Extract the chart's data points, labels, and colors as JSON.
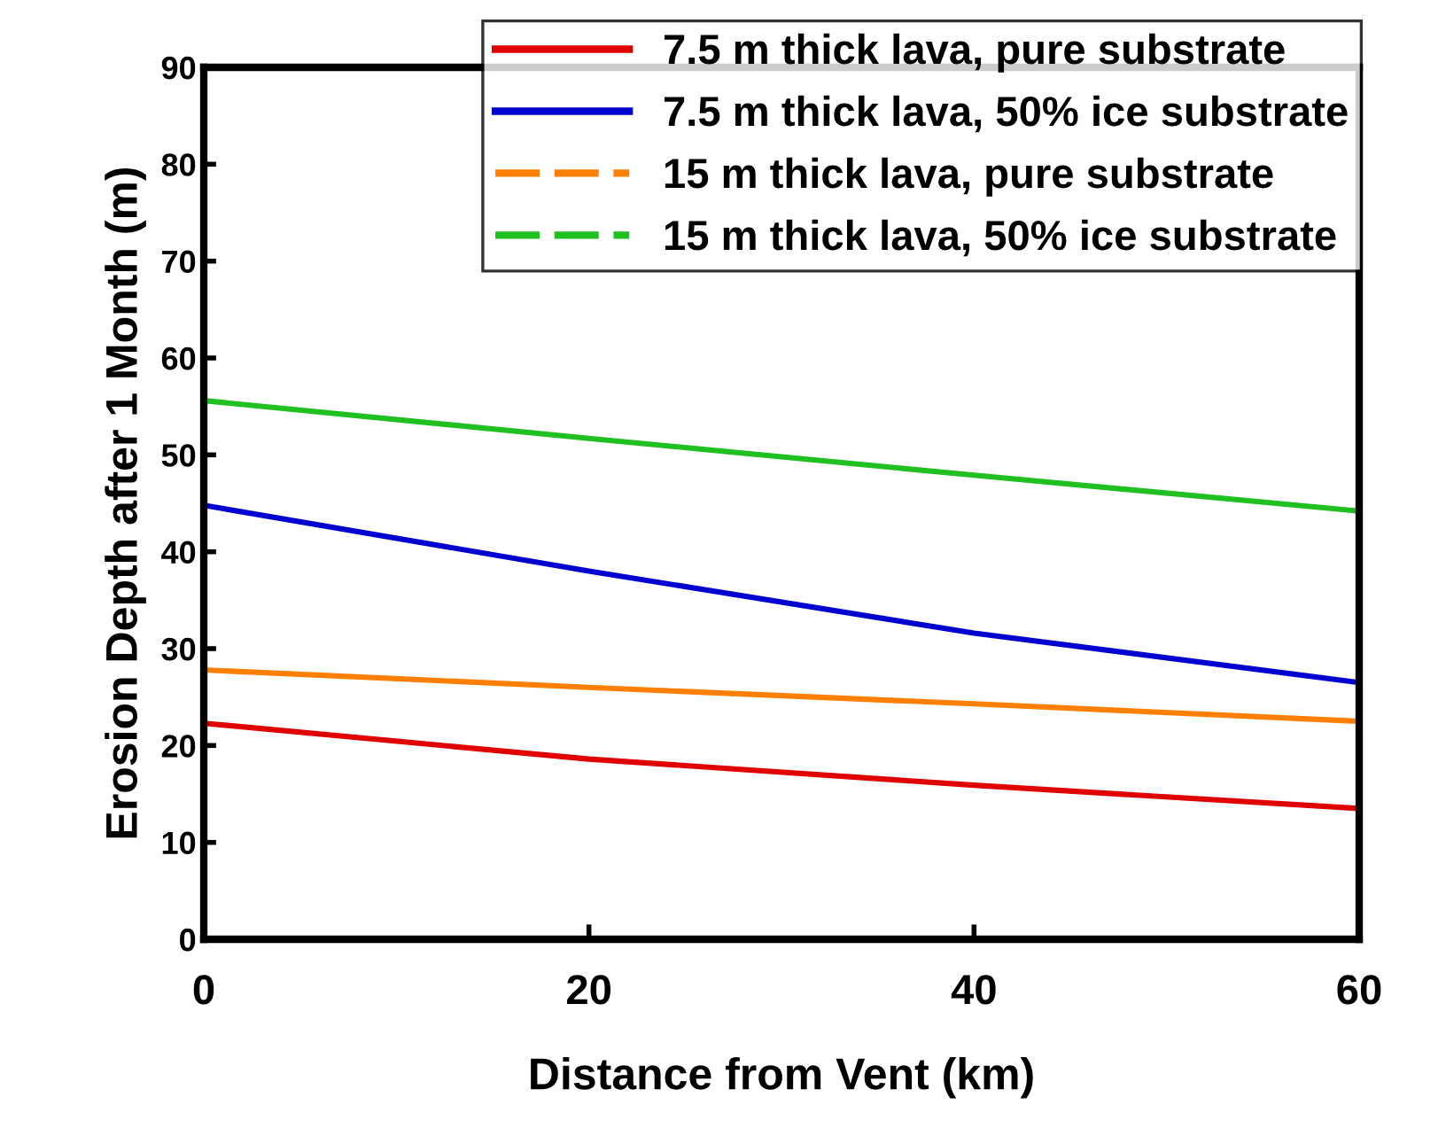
{
  "chart_data": {
    "type": "line",
    "xlabel": "Distance from Vent (km)",
    "ylabel": "Erosion Depth after 1 Month (m)",
    "x": [
      0,
      20,
      40,
      60
    ],
    "series": [
      {
        "name": "7.5 m thick lava, pure substrate",
        "color": "#e00000",
        "values": [
          22.3,
          18.6,
          15.9,
          13.5
        ]
      },
      {
        "name": "7.5 m thick lava, 50% ice substrate",
        "color": "#0000d0",
        "values": [
          44.8,
          38,
          31.6,
          26.5
        ]
      },
      {
        "name": "15 m thick lava, pure substrate",
        "color": "#ff7f00",
        "values": [
          27.8,
          26,
          24.3,
          22.5
        ]
      },
      {
        "name": "15 m thick lava, 50% ice substrate",
        "color": "#20c020",
        "values": [
          55.6,
          51.7,
          47.9,
          44.2
        ]
      }
    ],
    "xlim": [
      0,
      60
    ],
    "xticks": [
      0,
      20,
      40,
      60
    ],
    "ylim": [
      0,
      90
    ],
    "yticks": [
      0,
      10,
      20,
      30,
      40,
      50,
      60,
      70,
      80,
      90
    ],
    "grid": false,
    "legend": "top right",
    "marker": "none",
    "line_style": "solid"
  }
}
